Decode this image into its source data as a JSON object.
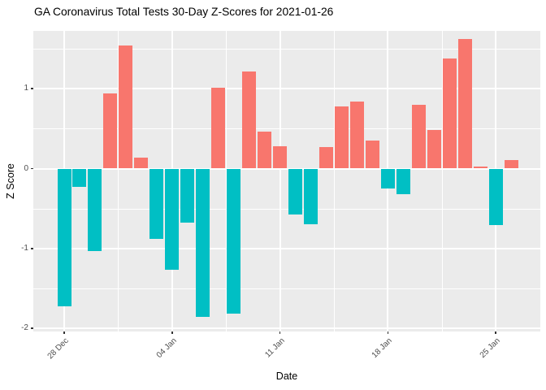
{
  "title": "GA Coronavirus Total Tests 30-Day Z-Scores for 2021-01-26",
  "chart_data": {
    "type": "bar",
    "title": "GA Coronavirus Total Tests 30-Day Z-Scores for 2021-01-26",
    "xlabel": "Date",
    "ylabel": "Z Score",
    "dates": [
      "2020-12-28",
      "2020-12-29",
      "2020-12-30",
      "2020-12-31",
      "2021-01-01",
      "2021-01-02",
      "2021-01-03",
      "2021-01-04",
      "2021-01-05",
      "2021-01-06",
      "2021-01-07",
      "2021-01-08",
      "2021-01-09",
      "2021-01-10",
      "2021-01-11",
      "2021-01-12",
      "2021-01-13",
      "2021-01-14",
      "2021-01-15",
      "2021-01-16",
      "2021-01-17",
      "2021-01-18",
      "2021-01-19",
      "2021-01-20",
      "2021-01-21",
      "2021-01-22",
      "2021-01-23",
      "2021-01-24",
      "2021-01-25",
      "2021-01-26"
    ],
    "values": [
      -1.72,
      -0.23,
      -1.03,
      0.94,
      1.54,
      0.14,
      -0.88,
      -1.27,
      -0.68,
      -1.86,
      1.01,
      -1.82,
      1.22,
      0.46,
      0.28,
      -0.57,
      -0.7,
      0.27,
      0.78,
      0.84,
      0.35,
      -0.25,
      -0.32,
      0.8,
      0.48,
      1.38,
      1.62,
      0.03,
      -0.71,
      0.11
    ],
    "x_tick_labels": [
      "28 Dec",
      "04 Jan",
      "11 Jan",
      "18 Jan",
      "25 Jan"
    ],
    "x_tick_indices": [
      0,
      7,
      14,
      21,
      28
    ],
    "y_major_ticks": [
      1,
      0,
      -1,
      -2
    ],
    "y_minor_ticks": [
      1.5,
      0.5,
      -0.5,
      -1.5
    ],
    "ylim": [
      -2.03,
      1.72
    ],
    "grid": "on",
    "legend": "none",
    "colors": {
      "positive": "#F8766D",
      "negative": "#00BFC4",
      "panel_background": "#EBEBEB",
      "gridline": "#FFFFFF",
      "tick_label": "#4D4D4D",
      "axis_title": "#000000"
    }
  }
}
